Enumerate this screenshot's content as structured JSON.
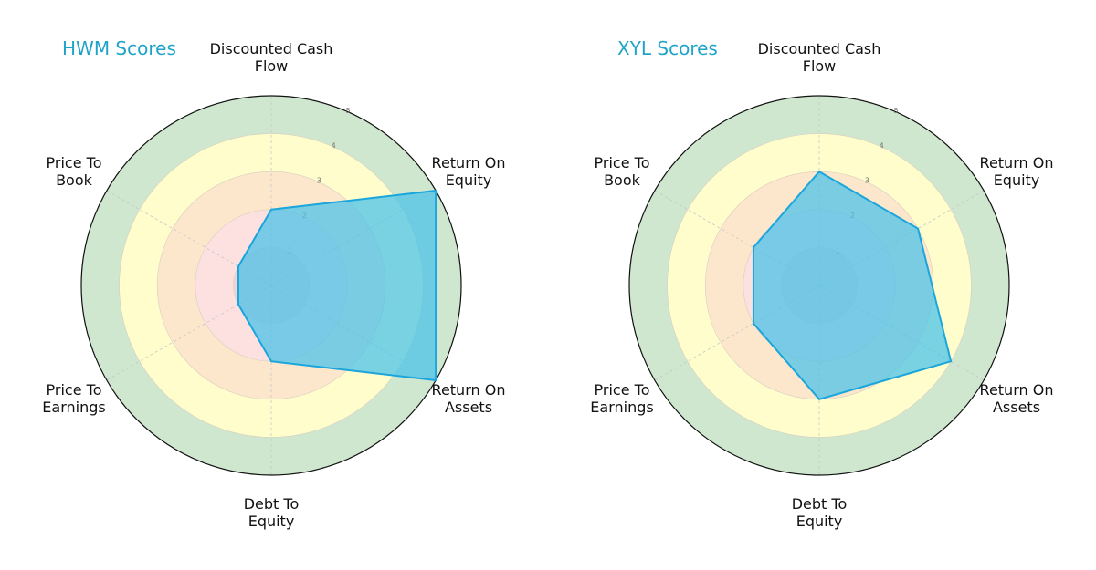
{
  "chart_data": [
    {
      "type": "radar",
      "title": "HWM Scores",
      "categories": [
        "Discounted Cash\nFlow",
        "Return On\nEquity",
        "Return On\nAssets",
        "Debt To\nEquity",
        "Price To\nEarnings",
        "Price To\nBook"
      ],
      "values": [
        2,
        5,
        5,
        2,
        1,
        1
      ],
      "rlim": [
        0,
        5
      ],
      "rticks": [
        "1",
        "2",
        "3",
        "4",
        "5"
      ],
      "fill_color": "#4cc3e8",
      "line_color": "#1aa6dc"
    },
    {
      "type": "radar",
      "title": "XYL Scores",
      "categories": [
        "Discounted Cash\nFlow",
        "Return On\nEquity",
        "Return On\nAssets",
        "Debt To\nEquity",
        "Price To\nEarnings",
        "Price To\nBook"
      ],
      "values": [
        3,
        3,
        4,
        3,
        2,
        2
      ],
      "rlim": [
        0,
        5
      ],
      "rticks": [
        "1",
        "2",
        "3",
        "4",
        "5"
      ],
      "fill_color": "#4cc3e8",
      "line_color": "#1aa6dc"
    }
  ],
  "bands": [
    {
      "r": 5,
      "color": "#cfe6cf"
    },
    {
      "r": 4,
      "color": "#fffdcc"
    },
    {
      "r": 3,
      "color": "#fde7cc"
    },
    {
      "r": 2,
      "color": "#fde0e0"
    },
    {
      "r": 1,
      "color": "#f3d2d2"
    }
  ],
  "panels": [
    {
      "title": "HWM Scores"
    },
    {
      "title": "XYL Scores"
    }
  ]
}
